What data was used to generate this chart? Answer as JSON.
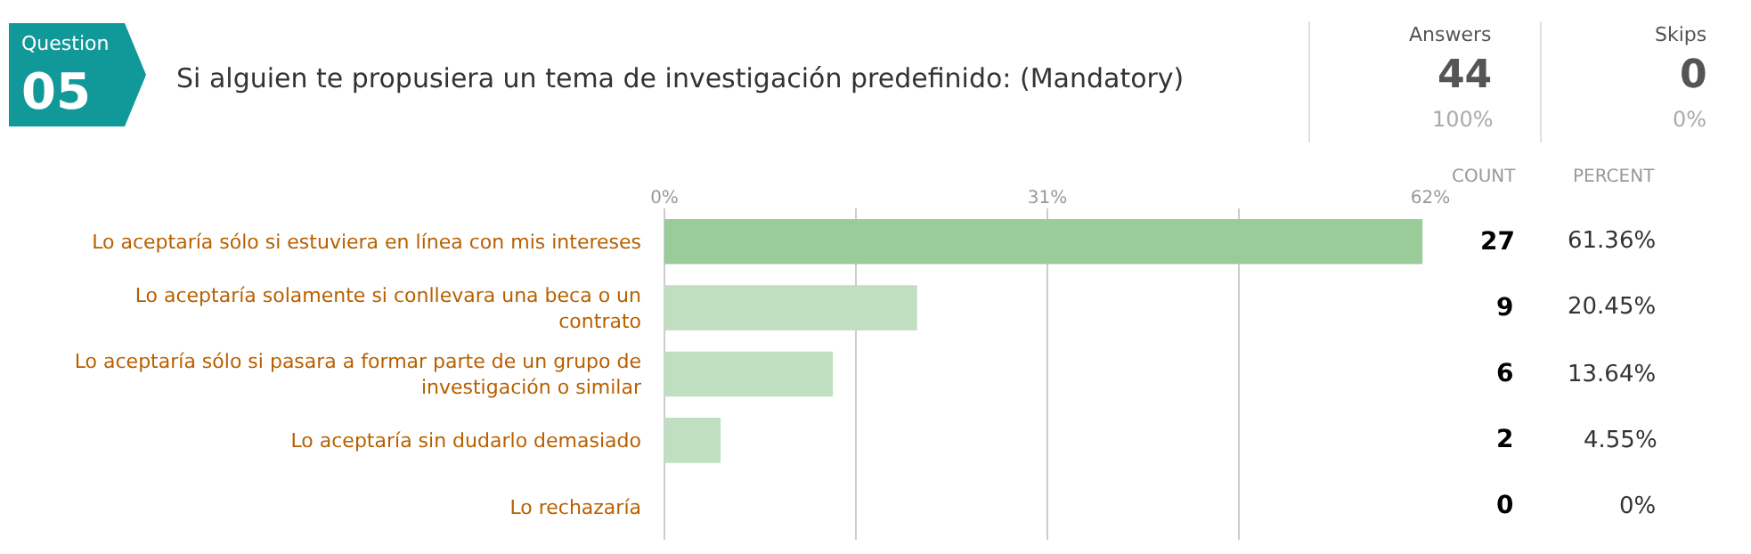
{
  "chart_data": {
    "type": "bar",
    "orientation": "horizontal",
    "title": "Si alguien te propusiera un tema de investigación predefinido: (Mandatory)",
    "categories": [
      "Lo aceptaría sólo si estuviera en línea con mis intereses",
      "Lo aceptaría solamente si conllevara una beca o un contrato",
      "Lo aceptaría sólo si pasara a formar parte de un grupo de investigación o similar",
      "Lo aceptaría sin dudarlo demasiado",
      "Lo rechazaría"
    ],
    "values": [
      61.36,
      20.45,
      13.64,
      4.55,
      0
    ],
    "colors": [
      "#99cc99",
      "#c0dec0",
      "#c0dec0",
      "#c0dec0",
      "#c0dec0"
    ],
    "value_labels": [
      "61.36%",
      "20.45%",
      "13.64%",
      "4.55%",
      "0%"
    ],
    "xlim": [
      0,
      62
    ],
    "xticks": [
      {
        "value": 0,
        "label": "0%"
      },
      {
        "value": 15.5,
        "label": null
      },
      {
        "value": 31,
        "label": "31%"
      },
      {
        "value": 46.5,
        "label": null
      },
      {
        "value": 62,
        "label": "62%"
      }
    ],
    "grid": "x",
    "annotations": [
      "Question",
      "05",
      "Answers",
      "44",
      "100%",
      "Skips",
      "0",
      "0%",
      "COUNT",
      "PERCENT",
      "27",
      "9",
      "6",
      "2",
      "0"
    ]
  }
}
